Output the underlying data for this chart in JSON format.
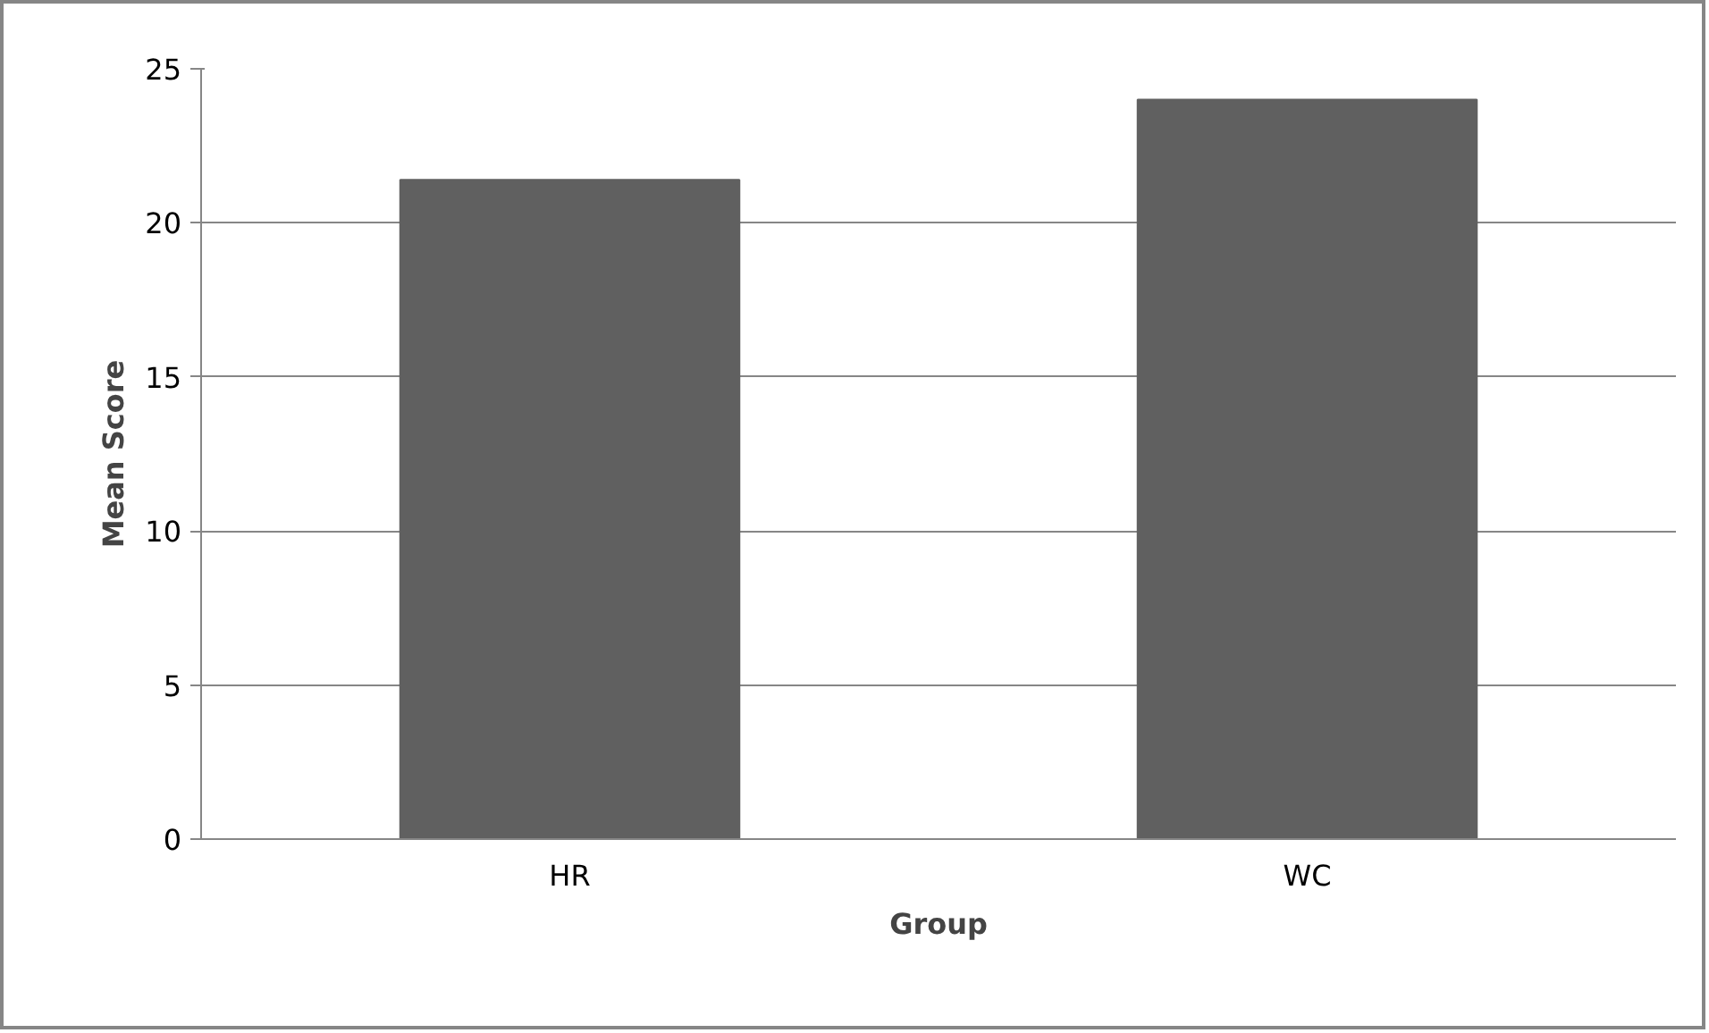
{
  "chart_data": {
    "type": "bar",
    "xlabel": "Group",
    "ylabel": "Mean Score",
    "categories": [
      "HR",
      "WC"
    ],
    "values": [
      21.4,
      24.0
    ],
    "color": "#606060",
    "ylim": [
      0,
      25
    ],
    "yticks": [
      0,
      5,
      10,
      15,
      20,
      25
    ],
    "grid": "y"
  }
}
